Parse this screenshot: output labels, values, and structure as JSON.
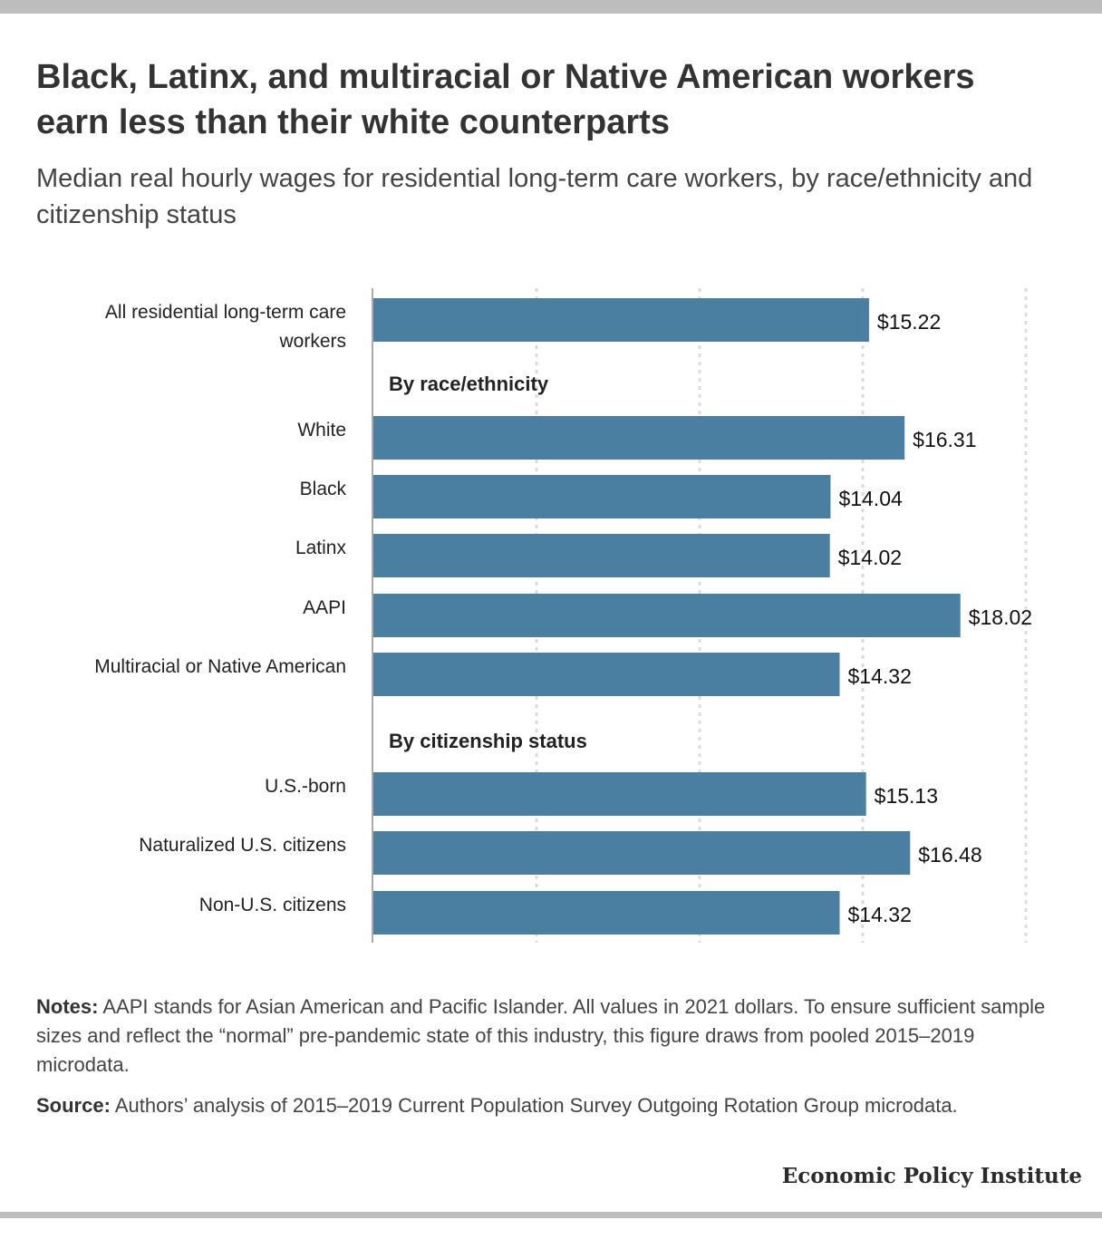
{
  "header": {
    "title": "Black, Latinx, and multiracial or Native American workers earn less than their white counterparts",
    "subtitle": "Median real hourly wages for residential long-term care workers, by race/ethnicity and citizenship status"
  },
  "chart_data": {
    "type": "bar",
    "orientation": "horizontal",
    "grid": true,
    "xlim": [
      0,
      20
    ],
    "bar_color": "#4a7fa2",
    "value_prefix": "$",
    "rows": [
      {
        "kind": "bar",
        "label": "All residential long-term care workers",
        "label_lines": [
          "All residential long-term care",
          "workers"
        ],
        "value": 15.22
      },
      {
        "kind": "group",
        "label": "By race/ethnicity"
      },
      {
        "kind": "bar",
        "label": "White",
        "value": 16.31
      },
      {
        "kind": "bar",
        "label": "Black",
        "value": 14.04
      },
      {
        "kind": "bar",
        "label": "Latinx",
        "value": 14.02
      },
      {
        "kind": "bar",
        "label": "AAPI",
        "value": 18.02
      },
      {
        "kind": "bar",
        "label": "Multiracial or Native American",
        "value": 14.32
      },
      {
        "kind": "group",
        "label": "By citizenship status"
      },
      {
        "kind": "bar",
        "label": "U.S.-born",
        "value": 15.13
      },
      {
        "kind": "bar",
        "label": "Naturalized U.S. citizens",
        "value": 16.48
      },
      {
        "kind": "bar",
        "label": "Non-U.S. citizens",
        "value": 14.32
      }
    ]
  },
  "footer": {
    "notes_label": "Notes:",
    "notes_text": " AAPI stands for Asian American and Pacific Islander. All values in 2021 dollars. To ensure sufficient sample sizes and reflect the “normal” pre-pandemic state of this industry, this figure draws from pooled 2015–2019 microdata.",
    "source_label": "Source:",
    "source_text": " Authors’ analysis of 2015–2019 Current Population Survey Outgoing Rotation Group microdata.",
    "brand": "Economic Policy Institute"
  }
}
